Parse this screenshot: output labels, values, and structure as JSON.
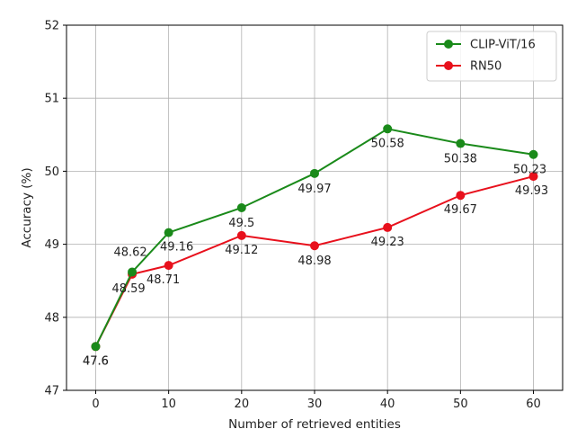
{
  "chart_data": {
    "type": "line",
    "xlabel": "Number of retrieved entities",
    "ylabel": "Accuracy (%)",
    "xlim": [
      -4,
      64
    ],
    "ylim": [
      47,
      52
    ],
    "xticks": [
      0,
      10,
      20,
      30,
      40,
      50,
      60
    ],
    "yticks": [
      47,
      48,
      49,
      50,
      51,
      52
    ],
    "grid": true,
    "legend_position": "top-right",
    "series": [
      {
        "name": "CLIP-ViT/16",
        "color": "#1a8a1a",
        "x": [
          0,
          5,
          10,
          20,
          30,
          40,
          50,
          60
        ],
        "values": [
          47.6,
          48.62,
          49.16,
          49.5,
          49.97,
          50.58,
          50.38,
          50.23
        ],
        "labels": [
          "47.6",
          "48.62",
          "49.16",
          "49.5",
          "49.97",
          "50.58",
          "50.38",
          "50.23"
        ]
      },
      {
        "name": "RN50",
        "color": "#e8101c",
        "x": [
          0,
          5,
          10,
          20,
          30,
          40,
          50,
          60
        ],
        "values": [
          47.6,
          48.59,
          48.71,
          49.12,
          48.98,
          49.23,
          49.67,
          49.93
        ],
        "labels": [
          "47.6",
          "48.59",
          "48.71",
          "49.12",
          "48.98",
          "49.23",
          "49.67",
          "49.93"
        ]
      }
    ]
  }
}
